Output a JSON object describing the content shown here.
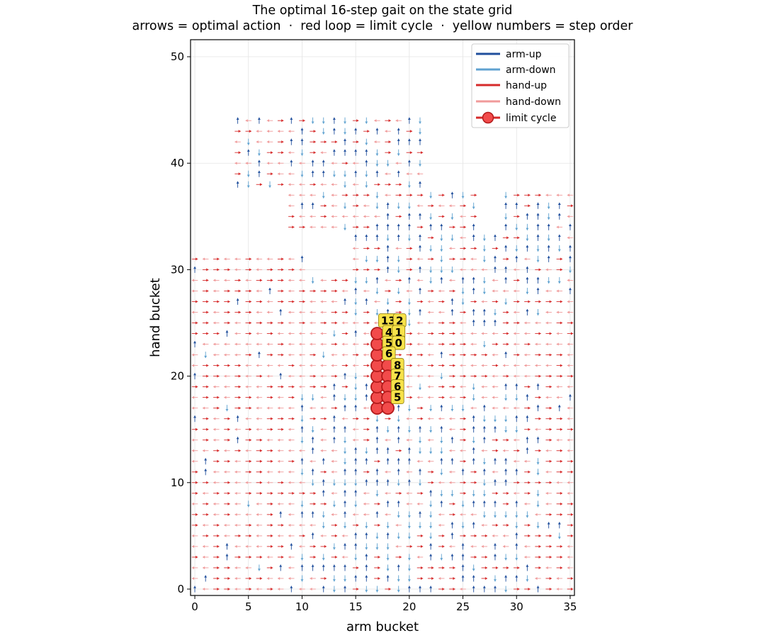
{
  "chart_data": {
    "type": "scatter",
    "title": "The optimal 16-step gait on the state grid",
    "subtitle": "arrows = optimal action  ·  red loop = limit cycle  ·  yellow numbers = step order",
    "xlabel": "arm bucket",
    "ylabel": "hand bucket",
    "xlim": [
      -0.4,
      35.4
    ],
    "ylim": [
      -0.6,
      51.6
    ],
    "xticks": [
      0,
      5,
      10,
      15,
      20,
      25,
      30,
      35
    ],
    "yticks": [
      0,
      10,
      20,
      30,
      40,
      50
    ],
    "grid": true,
    "legend_position": "top-right",
    "legend": [
      {
        "key": "arm-up",
        "label": "arm-up",
        "color": "#1f4e9c"
      },
      {
        "key": "arm-down",
        "label": "arm-down",
        "color": "#5fa2d0"
      },
      {
        "key": "hand-up",
        "label": "hand-up",
        "color": "#d62a2a"
      },
      {
        "key": "hand-down",
        "label": "hand-down",
        "color": "#f09a9a"
      },
      {
        "key": "limit-cycle",
        "label": "limit cycle",
        "color": "#d62a2a"
      }
    ],
    "limit_cycle": {
      "points": [
        [
          17,
          17
        ],
        [
          17,
          18
        ],
        [
          17,
          19
        ],
        [
          17,
          20
        ],
        [
          17,
          21
        ],
        [
          17,
          22
        ],
        [
          17,
          23
        ],
        [
          17,
          24
        ],
        [
          18,
          24
        ],
        [
          18,
          23
        ],
        [
          18,
          22
        ],
        [
          18,
          21
        ],
        [
          18,
          20
        ],
        [
          18,
          19
        ],
        [
          18,
          18
        ],
        [
          18,
          17
        ]
      ],
      "marker_color": "#f24b4b",
      "edge_color": "#b31b1b"
    },
    "step_labels": [
      {
        "text": "13",
        "x": 18.05,
        "y": 25.2
      },
      {
        "text": "2",
        "x": 19.1,
        "y": 25.2
      },
      {
        "text": "4",
        "x": 18.1,
        "y": 24.1
      },
      {
        "text": "1",
        "x": 19.0,
        "y": 24.1
      },
      {
        "text": "5",
        "x": 18.1,
        "y": 23.1
      },
      {
        "text": "0",
        "x": 19.0,
        "y": 23.1
      },
      {
        "text": "6",
        "x": 18.1,
        "y": 22.1
      },
      {
        "text": "8",
        "x": 18.9,
        "y": 21.0
      },
      {
        "text": "7",
        "x": 18.9,
        "y": 20.0
      },
      {
        "text": "6",
        "x": 18.9,
        "y": 19.0
      },
      {
        "text": "5",
        "x": 18.9,
        "y": 18.0
      }
    ],
    "arrow_field_note": "Each visited (arm, hand) cell shows one optimal action arrow: arm-up, arm-down, hand-up or hand-down. Region outline below describes which cells are populated.",
    "arrow_region": [
      {
        "y": [
          0,
          29
        ],
        "x": [
          0,
          35
        ]
      },
      {
        "y": [
          30,
          31
        ],
        "x": [
          0,
          10
        ]
      },
      {
        "y": [
          26,
          33
        ],
        "x": [
          15,
          35
        ]
      },
      {
        "y": [
          33,
          37
        ],
        "x": [
          15,
          26
        ]
      },
      {
        "y": [
          33,
          37
        ],
        "x": [
          29,
          35
        ]
      },
      {
        "y": [
          34,
          38
        ],
        "x": [
          9,
          20
        ]
      },
      {
        "y": [
          38,
          44
        ],
        "x": [
          4,
          21
        ]
      }
    ]
  }
}
